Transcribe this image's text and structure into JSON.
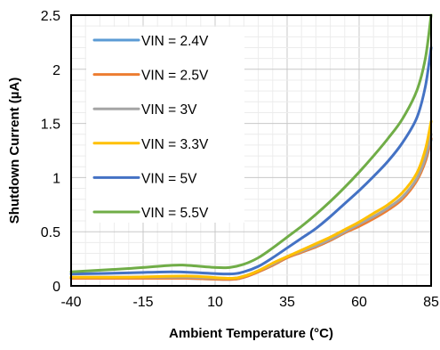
{
  "chart_data": {
    "type": "line",
    "title": "",
    "xlabel": "Ambient Temperature (°C)",
    "ylabel": "Shutdown Current (µA)",
    "xlim": [
      -40,
      85
    ],
    "ylim": [
      0,
      2.5
    ],
    "xticks": [
      -40,
      -15,
      10,
      35,
      60,
      85
    ],
    "xtick_labels": [
      "-40",
      "-15",
      "10",
      "35",
      "60",
      "85"
    ],
    "yticks": [
      0,
      0.5,
      1,
      1.5,
      2,
      2.5
    ],
    "ytick_labels": [
      "0",
      "0.5",
      "1",
      "1.5",
      "2",
      "2.5"
    ],
    "grid": true,
    "legend_position": "top-left",
    "series": [
      {
        "name": "VIN = 2.4V",
        "color": "#5B9BD5",
        "points": [
          [
            -40,
            0.07
          ],
          [
            -20,
            0.07
          ],
          [
            0,
            0.07
          ],
          [
            15,
            0.06
          ],
          [
            20,
            0.08
          ],
          [
            25,
            0.13
          ],
          [
            30,
            0.19
          ],
          [
            35,
            0.26
          ],
          [
            40,
            0.31
          ],
          [
            45,
            0.36
          ],
          [
            50,
            0.42
          ],
          [
            55,
            0.49
          ],
          [
            60,
            0.56
          ],
          [
            65,
            0.63
          ],
          [
            70,
            0.71
          ],
          [
            75,
            0.81
          ],
          [
            80,
            0.98
          ],
          [
            83,
            1.15
          ],
          [
            85,
            1.35
          ]
        ]
      },
      {
        "name": "VIN = 2.5V",
        "color": "#ED7D31",
        "points": [
          [
            -40,
            0.07
          ],
          [
            -20,
            0.07
          ],
          [
            0,
            0.07
          ],
          [
            15,
            0.06
          ],
          [
            20,
            0.08
          ],
          [
            25,
            0.13
          ],
          [
            30,
            0.19
          ],
          [
            35,
            0.26
          ],
          [
            40,
            0.31
          ],
          [
            45,
            0.36
          ],
          [
            50,
            0.42
          ],
          [
            55,
            0.49
          ],
          [
            60,
            0.55
          ],
          [
            65,
            0.62
          ],
          [
            70,
            0.7
          ],
          [
            75,
            0.8
          ],
          [
            80,
            0.97
          ],
          [
            83,
            1.15
          ],
          [
            85,
            1.36
          ]
        ]
      },
      {
        "name": "VIN = 3V",
        "color": "#A5A5A5",
        "points": [
          [
            -40,
            0.08
          ],
          [
            -20,
            0.08
          ],
          [
            0,
            0.08
          ],
          [
            15,
            0.07
          ],
          [
            20,
            0.09
          ],
          [
            25,
            0.14
          ],
          [
            30,
            0.2
          ],
          [
            35,
            0.27
          ],
          [
            40,
            0.32
          ],
          [
            45,
            0.37
          ],
          [
            50,
            0.43
          ],
          [
            55,
            0.5
          ],
          [
            60,
            0.57
          ],
          [
            65,
            0.64
          ],
          [
            70,
            0.72
          ],
          [
            75,
            0.82
          ],
          [
            80,
            0.99
          ],
          [
            83,
            1.18
          ],
          [
            85,
            1.4
          ]
        ]
      },
      {
        "name": "VIN = 3.3V",
        "color": "#FFC000",
        "points": [
          [
            -40,
            0.08
          ],
          [
            -20,
            0.08
          ],
          [
            0,
            0.09
          ],
          [
            15,
            0.07
          ],
          [
            20,
            0.09
          ],
          [
            25,
            0.14
          ],
          [
            30,
            0.21
          ],
          [
            35,
            0.27
          ],
          [
            40,
            0.33
          ],
          [
            45,
            0.39
          ],
          [
            50,
            0.45
          ],
          [
            55,
            0.52
          ],
          [
            60,
            0.59
          ],
          [
            65,
            0.67
          ],
          [
            70,
            0.75
          ],
          [
            75,
            0.86
          ],
          [
            80,
            1.04
          ],
          [
            83,
            1.26
          ],
          [
            85,
            1.52
          ]
        ]
      },
      {
        "name": "VIN = 5V",
        "color": "#4472C4",
        "points": [
          [
            -40,
            0.11
          ],
          [
            -20,
            0.12
          ],
          [
            -5,
            0.13
          ],
          [
            5,
            0.12
          ],
          [
            15,
            0.11
          ],
          [
            20,
            0.13
          ],
          [
            25,
            0.18
          ],
          [
            30,
            0.26
          ],
          [
            35,
            0.35
          ],
          [
            40,
            0.44
          ],
          [
            45,
            0.53
          ],
          [
            50,
            0.64
          ],
          [
            55,
            0.76
          ],
          [
            60,
            0.88
          ],
          [
            65,
            1.01
          ],
          [
            70,
            1.15
          ],
          [
            75,
            1.32
          ],
          [
            80,
            1.55
          ],
          [
            83,
            1.84
          ],
          [
            85,
            2.2
          ]
        ]
      },
      {
        "name": "VIN = 5.5V",
        "color": "#70AD47",
        "points": [
          [
            -40,
            0.13
          ],
          [
            -20,
            0.16
          ],
          [
            -5,
            0.19
          ],
          [
            0,
            0.19
          ],
          [
            10,
            0.17
          ],
          [
            15,
            0.17
          ],
          [
            20,
            0.2
          ],
          [
            25,
            0.26
          ],
          [
            30,
            0.35
          ],
          [
            35,
            0.45
          ],
          [
            40,
            0.55
          ],
          [
            45,
            0.66
          ],
          [
            50,
            0.78
          ],
          [
            55,
            0.91
          ],
          [
            60,
            1.05
          ],
          [
            65,
            1.2
          ],
          [
            70,
            1.36
          ],
          [
            75,
            1.54
          ],
          [
            80,
            1.8
          ],
          [
            83,
            2.1
          ],
          [
            85,
            2.5
          ]
        ]
      }
    ]
  }
}
